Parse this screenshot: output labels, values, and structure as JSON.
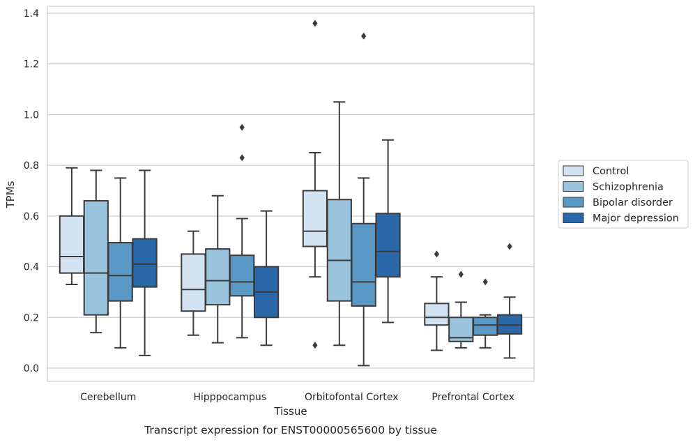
{
  "chart_data": {
    "type": "boxplot",
    "xlabel": "Tissue",
    "ylabel": "TPMs",
    "caption": "Transcript expression for ENST00000565600 by tissue",
    "ylim": [
      -0.05,
      1.43
    ],
    "yticks": [
      "0.0",
      "0.2",
      "0.4",
      "0.6",
      "0.8",
      "1.0",
      "1.2",
      "1.4"
    ],
    "grid": "horizontal",
    "legend_position": "right",
    "categories": [
      "Cerebellum",
      "Hipppocampus",
      "Orbitofontal Cortex",
      "Prefrontal Cortex"
    ],
    "series": [
      {
        "name": "Control",
        "color": "#d2e2f1",
        "boxes": [
          {
            "whislo": 0.33,
            "q1": 0.375,
            "med": 0.44,
            "q3": 0.6,
            "whishi": 0.79,
            "fliers": []
          },
          {
            "whislo": 0.13,
            "q1": 0.225,
            "med": 0.31,
            "q3": 0.45,
            "whishi": 0.54,
            "fliers": []
          },
          {
            "whislo": 0.36,
            "q1": 0.48,
            "med": 0.54,
            "q3": 0.7,
            "whishi": 0.85,
            "fliers": [
              1.36,
              0.09
            ]
          },
          {
            "whislo": 0.07,
            "q1": 0.17,
            "med": 0.2,
            "q3": 0.255,
            "whishi": 0.36,
            "fliers": [
              0.45
            ]
          }
        ]
      },
      {
        "name": "Schizophrenia",
        "color": "#9ac3dd",
        "boxes": [
          {
            "whislo": 0.14,
            "q1": 0.21,
            "med": 0.375,
            "q3": 0.66,
            "whishi": 0.78,
            "fliers": []
          },
          {
            "whislo": 0.1,
            "q1": 0.25,
            "med": 0.345,
            "q3": 0.47,
            "whishi": 0.68,
            "fliers": []
          },
          {
            "whislo": 0.09,
            "q1": 0.265,
            "med": 0.425,
            "q3": 0.665,
            "whishi": 1.05,
            "fliers": []
          },
          {
            "whislo": 0.08,
            "q1": 0.105,
            "med": 0.12,
            "q3": 0.2,
            "whishi": 0.26,
            "fliers": [
              0.37
            ]
          }
        ]
      },
      {
        "name": "Bipolar disorder",
        "color": "#5a99c6",
        "boxes": [
          {
            "whislo": 0.08,
            "q1": 0.265,
            "med": 0.365,
            "q3": 0.495,
            "whishi": 0.75,
            "fliers": []
          },
          {
            "whislo": 0.12,
            "q1": 0.285,
            "med": 0.34,
            "q3": 0.445,
            "whishi": 0.59,
            "fliers": [
              0.95,
              0.83
            ]
          },
          {
            "whislo": 0.01,
            "q1": 0.245,
            "med": 0.34,
            "q3": 0.57,
            "whishi": 0.75,
            "fliers": [
              1.31
            ]
          },
          {
            "whislo": 0.08,
            "q1": 0.13,
            "med": 0.17,
            "q3": 0.2,
            "whishi": 0.21,
            "fliers": [
              0.34
            ]
          }
        ]
      },
      {
        "name": "Major depression",
        "color": "#2a68a9",
        "boxes": [
          {
            "whislo": 0.05,
            "q1": 0.32,
            "med": 0.41,
            "q3": 0.51,
            "whishi": 0.78,
            "fliers": []
          },
          {
            "whislo": 0.09,
            "q1": 0.2,
            "med": 0.3,
            "q3": 0.4,
            "whishi": 0.62,
            "fliers": []
          },
          {
            "whislo": 0.18,
            "q1": 0.36,
            "med": 0.46,
            "q3": 0.61,
            "whishi": 0.9,
            "fliers": []
          },
          {
            "whislo": 0.04,
            "q1": 0.135,
            "med": 0.17,
            "q3": 0.21,
            "whishi": 0.28,
            "fliers": [
              0.48
            ]
          }
        ]
      }
    ]
  }
}
